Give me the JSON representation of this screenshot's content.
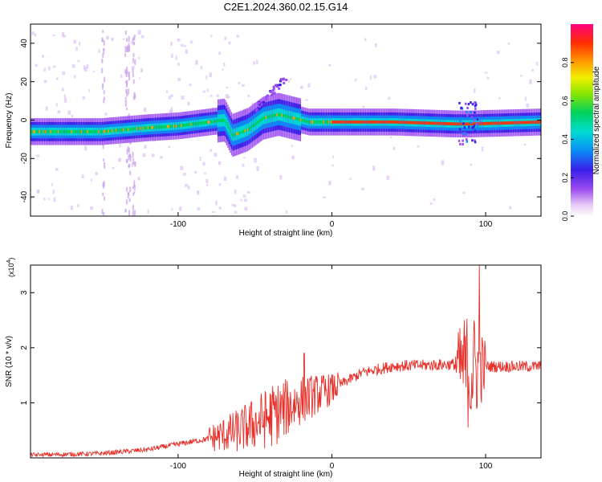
{
  "title": "C2E1.2024.360.02.15.G14",
  "chart_data": [
    {
      "type": "heatmap",
      "xlabel": "Height of straight line (km)",
      "ylabel": "Frequency (Hz)",
      "xlim": [
        -196,
        136
      ],
      "ylim": [
        -50,
        50
      ],
      "xticks": [
        -100,
        0,
        100
      ],
      "yticks": [
        -40,
        -20,
        0,
        20,
        40
      ],
      "colorbar": {
        "label": "Normalized spectral amplitude",
        "range": [
          0,
          1
        ],
        "ticks": [
          0.0,
          0.2,
          0.4,
          0.6,
          0.8
        ]
      },
      "ridge": [
        {
          "x": -196,
          "y": -6
        },
        {
          "x": -150,
          "y": -6
        },
        {
          "x": -120,
          "y": -4
        },
        {
          "x": -100,
          "y": -3
        },
        {
          "x": -80,
          "y": -1
        },
        {
          "x": -70,
          "y": 0
        },
        {
          "x": -65,
          "y": -8
        },
        {
          "x": -55,
          "y": -5
        },
        {
          "x": -45,
          "y": 1
        },
        {
          "x": -35,
          "y": 3
        },
        {
          "x": -25,
          "y": 1
        },
        {
          "x": -15,
          "y": -1
        },
        {
          "x": 0,
          "y": -1
        },
        {
          "x": 40,
          "y": -1
        },
        {
          "x": 80,
          "y": -2
        },
        {
          "x": 90,
          "y": -2
        },
        {
          "x": 136,
          "y": -1
        }
      ]
    },
    {
      "type": "line",
      "xlabel": "Height of straight line (km)",
      "ylabel": "SNR (10 * v/v)",
      "multiplier": "(x10",
      "multiplier_exp": "4",
      "multiplier_end": ")",
      "xlim": [
        -196,
        136
      ],
      "ylim": [
        0,
        35000
      ],
      "xticks": [
        -100,
        0,
        100
      ],
      "yticks": [
        10000,
        20000,
        30000
      ],
      "ytick_labels": [
        "1",
        "2",
        "3"
      ],
      "color": "#e8302a",
      "envelope": [
        {
          "x": -196,
          "y": 500
        },
        {
          "x": -150,
          "y": 800
        },
        {
          "x": -120,
          "y": 1500
        },
        {
          "x": -100,
          "y": 2500
        },
        {
          "x": -80,
          "y": 3500
        },
        {
          "x": -60,
          "y": 5000
        },
        {
          "x": -40,
          "y": 7500
        },
        {
          "x": -20,
          "y": 10500
        },
        {
          "x": 0,
          "y": 12500
        },
        {
          "x": 20,
          "y": 15500
        },
        {
          "x": 40,
          "y": 16700
        },
        {
          "x": 60,
          "y": 16800
        },
        {
          "x": 80,
          "y": 17000
        },
        {
          "x": 90,
          "y": 16000
        },
        {
          "x": 100,
          "y": 16600
        },
        {
          "x": 136,
          "y": 16600
        }
      ],
      "noise_zones": [
        {
          "x0": -80,
          "x1": 5,
          "amp": 6000
        },
        {
          "x0": 80,
          "x1": 100,
          "amp": 12000
        }
      ],
      "peaks": [
        {
          "x": -18,
          "y": 19000
        },
        {
          "x": 86,
          "y": 25000
        },
        {
          "x": 96,
          "y": 35000
        }
      ]
    }
  ]
}
